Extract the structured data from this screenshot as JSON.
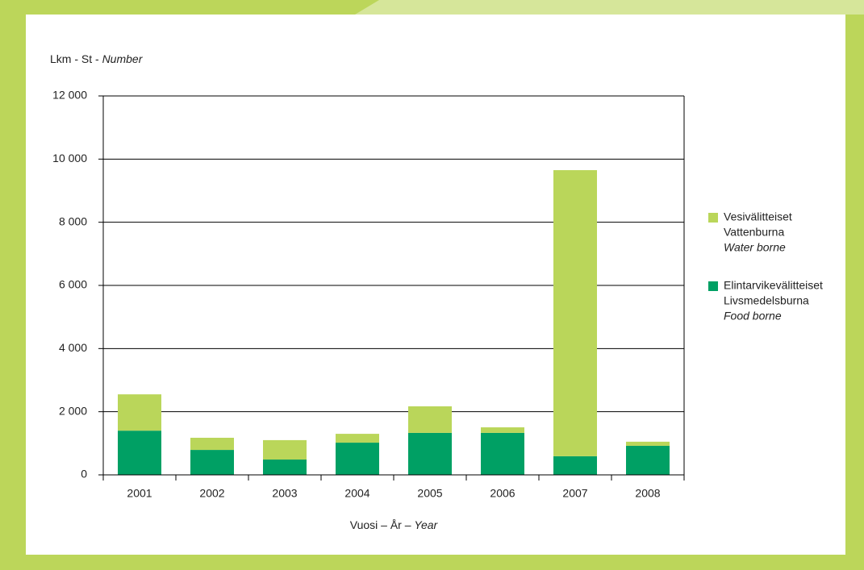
{
  "chart_data": {
    "type": "stacked_bar",
    "ylabel": [
      "Lkm - St -",
      "Number"
    ],
    "xlabel": [
      "Vuosi – År –",
      "Year"
    ],
    "categories": [
      "2001",
      "2002",
      "2003",
      "2004",
      "2005",
      "2006",
      "2007",
      "2008"
    ],
    "series": [
      {
        "name": [
          "Elintarvikevälitteiset",
          "Livsmedelsburna",
          "Food borne"
        ],
        "color": "#00a064",
        "values": [
          1400,
          790,
          485,
          1020,
          1330,
          1330,
          590,
          920
        ]
      },
      {
        "name": [
          "Vesivälitteiset",
          "Vattenburna",
          "Water borne"
        ],
        "color": "#bad65a",
        "values": [
          1150,
          385,
          615,
          280,
          840,
          175,
          9060,
          130
        ]
      }
    ],
    "ylim": [
      0,
      12000
    ],
    "yticks": [
      0,
      {
        "value": 2000,
        "label": "2 000"
      },
      {
        "value": 4000,
        "label": "4 000"
      },
      {
        "value": 6000,
        "label": "6 000"
      },
      {
        "value": 8000,
        "label": "8 000"
      },
      {
        "value": 10000,
        "label": "10 000"
      },
      {
        "value": 12000,
        "label": "12 000"
      }
    ],
    "grid": true,
    "legend": "right"
  }
}
